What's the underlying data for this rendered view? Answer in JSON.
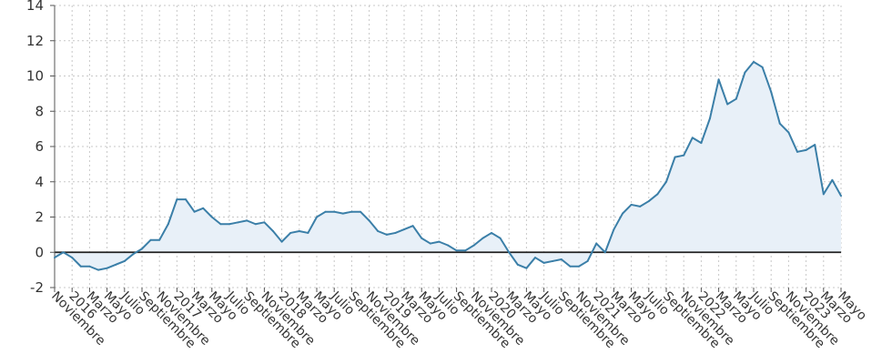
{
  "chart_data": {
    "type": "area",
    "ylim": [
      -2,
      14
    ],
    "yticks": [
      -2,
      0,
      2,
      4,
      6,
      8,
      10,
      12,
      14
    ],
    "grid": true,
    "line_color": "#3b7fa8",
    "fill_color": "#e8f0f8",
    "zero_line_color": "#222222",
    "x_tick_labels": [
      {
        "index": 0,
        "label": "Noviembre"
      },
      {
        "index": 2,
        "label": "2016"
      },
      {
        "index": 4,
        "label": "Marzo"
      },
      {
        "index": 6,
        "label": "Mayo"
      },
      {
        "index": 8,
        "label": "Julio"
      },
      {
        "index": 10,
        "label": "Septiembre"
      },
      {
        "index": 12,
        "label": "Noviembre"
      },
      {
        "index": 14,
        "label": "2017"
      },
      {
        "index": 16,
        "label": "Marzo"
      },
      {
        "index": 18,
        "label": "Mayo"
      },
      {
        "index": 20,
        "label": "Julio"
      },
      {
        "index": 22,
        "label": "Septiembre"
      },
      {
        "index": 24,
        "label": "Noviembre"
      },
      {
        "index": 26,
        "label": "2018"
      },
      {
        "index": 28,
        "label": "Marzo"
      },
      {
        "index": 30,
        "label": "Mayo"
      },
      {
        "index": 32,
        "label": "Julio"
      },
      {
        "index": 34,
        "label": "Septiembre"
      },
      {
        "index": 36,
        "label": "Noviembre"
      },
      {
        "index": 38,
        "label": "2019"
      },
      {
        "index": 40,
        "label": "Marzo"
      },
      {
        "index": 42,
        "label": "Mayo"
      },
      {
        "index": 44,
        "label": "Julio"
      },
      {
        "index": 46,
        "label": "Septiembre"
      },
      {
        "index": 48,
        "label": "Noviembre"
      },
      {
        "index": 50,
        "label": "2020"
      },
      {
        "index": 52,
        "label": "Marzo"
      },
      {
        "index": 54,
        "label": "Mayo"
      },
      {
        "index": 56,
        "label": "Julio"
      },
      {
        "index": 58,
        "label": "Septiembre"
      },
      {
        "index": 60,
        "label": "Noviembre"
      },
      {
        "index": 62,
        "label": "2021"
      },
      {
        "index": 64,
        "label": "Marzo"
      },
      {
        "index": 66,
        "label": "Mayo"
      },
      {
        "index": 68,
        "label": "Julio"
      },
      {
        "index": 70,
        "label": "Septiembre"
      },
      {
        "index": 72,
        "label": "Noviembre"
      },
      {
        "index": 74,
        "label": "2022"
      },
      {
        "index": 76,
        "label": "Marzo"
      },
      {
        "index": 78,
        "label": "Mayo"
      },
      {
        "index": 80,
        "label": "Julio"
      },
      {
        "index": 82,
        "label": "Septiembre"
      },
      {
        "index": 84,
        "label": "Noviembre"
      },
      {
        "index": 86,
        "label": "2023"
      },
      {
        "index": 88,
        "label": "Marzo"
      },
      {
        "index": 90,
        "label": "Mayo"
      }
    ],
    "values": [
      -0.3,
      0.0,
      -0.3,
      -0.8,
      -0.8,
      -1.0,
      -0.9,
      -0.7,
      -0.5,
      -0.1,
      0.2,
      0.7,
      0.7,
      1.6,
      3.0,
      3.0,
      2.3,
      2.5,
      2.0,
      1.6,
      1.6,
      1.7,
      1.8,
      1.6,
      1.7,
      1.2,
      0.6,
      1.1,
      1.2,
      1.1,
      2.0,
      2.3,
      2.3,
      2.2,
      2.3,
      2.3,
      1.8,
      1.2,
      1.0,
      1.1,
      1.3,
      1.5,
      0.8,
      0.5,
      0.6,
      0.4,
      0.1,
      0.1,
      0.4,
      0.8,
      1.1,
      0.8,
      0.0,
      -0.7,
      -0.9,
      -0.3,
      -0.6,
      -0.5,
      -0.4,
      -0.8,
      -0.8,
      -0.5,
      0.5,
      0.0,
      1.3,
      2.2,
      2.7,
      2.6,
      2.9,
      3.3,
      4.0,
      5.4,
      5.5,
      6.5,
      6.2,
      7.6,
      9.8,
      8.4,
      8.7,
      10.2,
      10.8,
      10.5,
      9.1,
      7.3,
      6.8,
      5.7,
      5.8,
      6.1,
      3.3,
      4.1,
      3.2
    ]
  }
}
